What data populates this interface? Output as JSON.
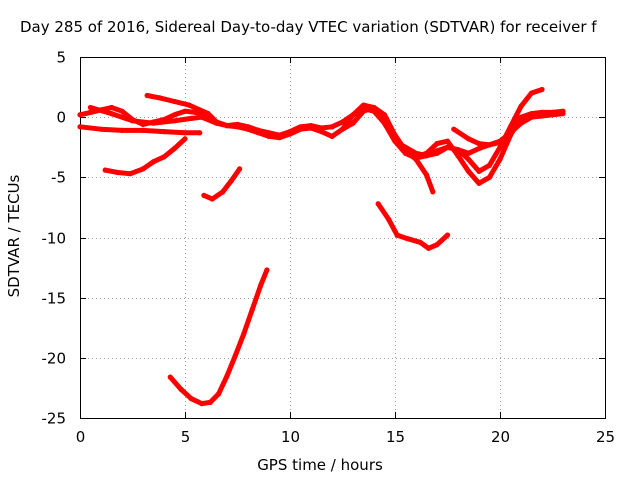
{
  "chart_data": {
    "type": "scatter",
    "title": "Day 285 of 2016, Sidereal Day-to-day VTEC variation (SDTVAR) for receiver f",
    "xlabel": "GPS time / hours",
    "ylabel": "SDTVAR / TECUs",
    "xlim": [
      0,
      25
    ],
    "ylim": [
      -25,
      5
    ],
    "xticks": [
      "0",
      "5",
      "10",
      "15",
      "20",
      "25"
    ],
    "yticks": [
      "5",
      "0",
      "-5",
      "-10",
      "-15",
      "-20",
      "-25"
    ],
    "grid": true,
    "color": "#ff0000",
    "series": [
      {
        "x": [
          0,
          0.5,
          1,
          1.5,
          2,
          2.5,
          3,
          3.5,
          4,
          4.5,
          5,
          5.5,
          6
        ],
        "y": [
          0.2,
          0.4,
          0.6,
          0.8,
          0.5,
          -0.2,
          -0.6,
          -0.4,
          -0.2,
          0.2,
          0.5,
          0.4,
          0.2
        ]
      },
      {
        "x": [
          0,
          1,
          2,
          3,
          4,
          5,
          5.7
        ],
        "y": [
          -0.8,
          -1.0,
          -1.1,
          -1.1,
          -1.2,
          -1.3,
          -1.3
        ]
      },
      {
        "x": [
          0.5,
          1.5,
          2.5,
          3.5,
          4.5,
          5.3,
          5.8,
          6.5,
          7,
          7.5,
          8,
          8.5,
          9,
          9.5,
          10,
          10.5,
          11,
          11.5,
          12,
          12.5,
          13,
          13.5,
          14,
          14.5,
          15,
          15.5,
          16,
          16.5,
          17,
          17.5,
          18,
          18.5,
          19,
          19.5,
          20
        ],
        "y": [
          0.8,
          0.3,
          -0.3,
          -0.5,
          -0.3,
          -0.1,
          0.0,
          -0.5,
          -0.7,
          -0.6,
          -0.8,
          -1.1,
          -1.3,
          -1.5,
          -1.2,
          -0.8,
          -0.7,
          -0.9,
          -0.8,
          -0.4,
          0.2,
          0.7,
          0.5,
          -0.5,
          -2.0,
          -3.0,
          -3.4,
          -3.2,
          -2.8,
          -2.5,
          -2.7,
          -3.0,
          -2.6,
          -2.3,
          -2.1
        ]
      },
      {
        "x": [
          3.2,
          3.8,
          4.5,
          5.2,
          5.7,
          6.1,
          6.5,
          7,
          7.5,
          8,
          8.5,
          9,
          9.5,
          10,
          10.5,
          11,
          11.5,
          12,
          12.5,
          13,
          13.5,
          14,
          14.5,
          15,
          15.5,
          16,
          16.5,
          17,
          17.5,
          18,
          18.5,
          19,
          19.5,
          20,
          20.5,
          21,
          21.5,
          22
        ],
        "y": [
          1.8,
          1.6,
          1.3,
          1.0,
          0.6,
          0.3,
          -0.4,
          -0.7,
          -0.8,
          -1.0,
          -1.3,
          -1.6,
          -1.7,
          -1.4,
          -1.0,
          -0.9,
          -1.2,
          -1.6,
          -1.0,
          0.2,
          1.0,
          0.8,
          -0.5,
          -2.0,
          -2.5,
          -3.0,
          -3.2,
          -3.0,
          -2.5,
          -2.7,
          -3.5,
          -4.5,
          -4.0,
          -2.5,
          -0.8,
          0.9,
          2.0,
          2.3
        ]
      },
      {
        "x": [
          12.5,
          13,
          13.5,
          14,
          14.5,
          15,
          15.5,
          16,
          16.5,
          17,
          17.5,
          18,
          18.5,
          19,
          19.5,
          20,
          20.5,
          21,
          21.5,
          22,
          22.5,
          23
        ],
        "y": [
          -1.0,
          -0.5,
          0.5,
          0.8,
          0.2,
          -1.5,
          -2.8,
          -3.3,
          -3.0,
          -2.2,
          -2.0,
          -3.2,
          -4.5,
          -5.5,
          -5.0,
          -3.5,
          -1.5,
          0.0,
          0.3,
          0.4,
          0.4,
          0.5
        ]
      },
      {
        "x": [
          14.5,
          15,
          15.5,
          16,
          16.5,
          16.8
        ],
        "y": [
          -0.5,
          -1.5,
          -2.8,
          -3.5,
          -4.8,
          -6.2
        ]
      },
      {
        "x": [
          17.8,
          18.5,
          19,
          19.5,
          20,
          20.5,
          21,
          21.5,
          22,
          22.5,
          23
        ],
        "y": [
          -1.0,
          -1.8,
          -2.2,
          -2.3,
          -2.0,
          -1.3,
          -0.5,
          0.0,
          0.1,
          0.2,
          0.3
        ]
      },
      {
        "x": [
          1.2,
          1.8,
          2.4,
          3.0,
          3.5,
          4.0,
          4.5,
          5.0
        ],
        "y": [
          -4.4,
          -4.6,
          -4.7,
          -4.3,
          -3.7,
          -3.3,
          -2.6,
          -1.8
        ]
      },
      {
        "x": [
          5.9,
          6.3,
          6.8,
          7.2,
          7.6
        ],
        "y": [
          -6.5,
          -6.8,
          -6.2,
          -5.3,
          -4.3
        ]
      },
      {
        "x": [
          14.2,
          14.7,
          15.1,
          15.6,
          16.2,
          16.6,
          17.0,
          17.5
        ],
        "y": [
          -7.2,
          -8.5,
          -9.8,
          -10.1,
          -10.4,
          -10.9,
          -10.6,
          -9.8
        ]
      },
      {
        "x": [
          4.3,
          4.8,
          5.3,
          5.8,
          6.2,
          6.6,
          7.0,
          7.4,
          7.8,
          8.2,
          8.6,
          8.9
        ],
        "y": [
          -21.6,
          -22.6,
          -23.4,
          -23.8,
          -23.7,
          -23.0,
          -21.5,
          -19.8,
          -18.0,
          -16.0,
          -14.0,
          -12.7
        ]
      }
    ]
  }
}
